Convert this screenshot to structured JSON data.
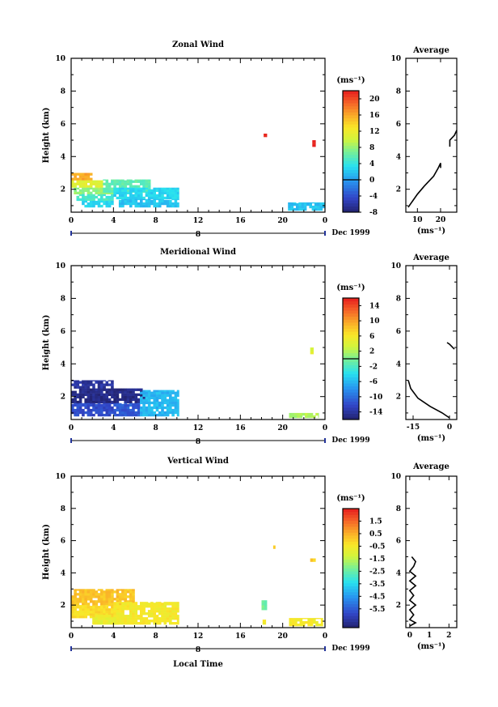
{
  "chart_data": [
    {
      "type": "heatmap",
      "title": "Zonal Wind",
      "ylabel": "Height (km)",
      "xlabel": "",
      "xlim": [
        0,
        24
      ],
      "ylim": [
        0.6,
        10
      ],
      "x_ticks": [
        "0",
        "4",
        "8",
        "12",
        "16",
        "20",
        "0"
      ],
      "y_ticks": [
        "2",
        "4",
        "6",
        "8",
        "10"
      ],
      "date_tick_label": "8",
      "date_label": "Dec 1999",
      "colorbar": {
        "unit": "(ms⁻¹)",
        "range": [
          -8,
          22
        ],
        "ticks": [
          "20",
          "16",
          "12",
          "8",
          "4",
          "0",
          "-4",
          "-8"
        ],
        "tick_values": [
          20,
          16,
          12,
          8,
          4,
          0,
          -4,
          -8
        ],
        "zero_line": 0
      },
      "regions": [
        {
          "x": [
            0.0,
            2.0
          ],
          "y": [
            2.55,
            3.0
          ],
          "value": 16
        },
        {
          "x": [
            0.0,
            3.0
          ],
          "y": [
            2.1,
            2.55
          ],
          "value": 11
        },
        {
          "x": [
            0.0,
            4.0
          ],
          "y": [
            1.7,
            2.1
          ],
          "value": 8
        },
        {
          "x": [
            3.0,
            7.5
          ],
          "y": [
            1.8,
            2.6
          ],
          "value": 6
        },
        {
          "x": [
            0.5,
            4.0
          ],
          "y": [
            1.3,
            1.7
          ],
          "value": 5
        },
        {
          "x": [
            4.0,
            10.2
          ],
          "y": [
            1.4,
            2.1
          ],
          "value": 3
        },
        {
          "x": [
            1.0,
            4.0
          ],
          "y": [
            0.9,
            1.3
          ],
          "value": 3
        },
        {
          "x": [
            4.5,
            10.2
          ],
          "y": [
            0.9,
            1.4
          ],
          "value": 2
        },
        {
          "x": [
            18.2,
            18.5
          ],
          "y": [
            5.2,
            5.4
          ],
          "value": 22
        },
        {
          "x": [
            22.8,
            23.1
          ],
          "y": [
            4.6,
            5.0
          ],
          "value": 22
        },
        {
          "x": [
            20.5,
            24.0
          ],
          "y": [
            0.7,
            1.2
          ],
          "value": 2
        }
      ],
      "average_profile": {
        "title": "Average",
        "xlabel": "(ms⁻¹)",
        "x_ticks": [
          "10",
          "20"
        ],
        "xlim": [
          5,
          27
        ],
        "ylim": [
          0.6,
          10
        ],
        "y_ticks": [
          "2",
          "4",
          "6",
          "8",
          "10"
        ],
        "segments": [
          {
            "x": [
              6,
              8,
              10,
              13,
              17,
              19,
              20,
              20
            ],
            "y": [
              0.9,
              1.3,
              1.7,
              2.2,
              2.8,
              3.3,
              3.6,
              3.3
            ]
          },
          {
            "x": [
              24,
              24,
              26,
              27
            ],
            "y": [
              4.6,
              5.0,
              5.3,
              5.6
            ]
          }
        ]
      }
    },
    {
      "type": "heatmap",
      "title": "Meridional Wind",
      "ylabel": "Height (km)",
      "xlabel": "",
      "xlim": [
        0,
        24
      ],
      "ylim": [
        0.6,
        10
      ],
      "x_ticks": [
        "0",
        "4",
        "8",
        "12",
        "16",
        "20",
        "0"
      ],
      "y_ticks": [
        "2",
        "4",
        "6",
        "8",
        "10"
      ],
      "date_tick_label": "8",
      "date_label": "Dec 1999",
      "colorbar": {
        "unit": "(ms⁻¹)",
        "range": [
          -16,
          16
        ],
        "ticks": [
          "14",
          "10",
          "6",
          "2",
          "-2",
          "-6",
          "-10",
          "-14"
        ],
        "tick_values": [
          14,
          10,
          6,
          2,
          -2,
          -6,
          -10,
          -14
        ],
        "zero_line": 0
      },
      "regions": [
        {
          "x": [
            0.0,
            4.0
          ],
          "y": [
            2.5,
            3.0
          ],
          "value": -14
        },
        {
          "x": [
            0.0,
            7.0
          ],
          "y": [
            1.6,
            2.5
          ],
          "value": -15
        },
        {
          "x": [
            0.0,
            4.0
          ],
          "y": [
            0.8,
            1.6
          ],
          "value": -12
        },
        {
          "x": [
            4.0,
            6.5
          ],
          "y": [
            0.8,
            1.6
          ],
          "value": -11
        },
        {
          "x": [
            6.5,
            10.2
          ],
          "y": [
            0.8,
            2.4
          ],
          "value": -6
        },
        {
          "x": [
            20.6,
            23.4
          ],
          "y": [
            0.7,
            1.0
          ],
          "value": 2
        },
        {
          "x": [
            22.6,
            22.9
          ],
          "y": [
            4.6,
            5.0
          ],
          "value": 4
        }
      ],
      "average_profile": {
        "title": "Average",
        "xlabel": "(ms⁻¹)",
        "x_ticks": [
          "-15",
          "0"
        ],
        "xlim": [
          -18,
          3
        ],
        "ylim": [
          0.6,
          10
        ],
        "y_ticks": [
          "2",
          "4",
          "6",
          "8",
          "10"
        ],
        "segments": [
          {
            "x": [
              -17,
              -16,
              -13,
              -8,
              -3,
              0
            ],
            "y": [
              3.0,
              2.5,
              1.9,
              1.4,
              1.0,
              0.7
            ]
          },
          {
            "x": [
              -1,
              0,
              2
            ],
            "y": [
              5.3,
              5.2,
              4.9
            ]
          }
        ]
      }
    },
    {
      "type": "heatmap",
      "title": "Vertical Wind",
      "ylabel": "Height (km)",
      "xlabel": "Local Time",
      "xlim": [
        0,
        24
      ],
      "ylim": [
        0.6,
        10
      ],
      "x_ticks": [
        "0",
        "4",
        "8",
        "12",
        "16",
        "20",
        "0"
      ],
      "y_ticks": [
        "2",
        "4",
        "6",
        "8",
        "10"
      ],
      "date_tick_label": "8",
      "date_label": "Dec 1999",
      "colorbar": {
        "unit": "(ms⁻¹)",
        "range": [
          -7,
          2.5
        ],
        "ticks": [
          "1.5",
          "0.5",
          "-0.5",
          "-1.5",
          "-2.5",
          "-3.5",
          "-4.5",
          "-5.5"
        ],
        "tick_values": [
          1.5,
          0.5,
          -0.5,
          -1.5,
          -2.5,
          -3.5,
          -4.5,
          -5.5
        ],
        "zero_line": null
      },
      "regions": [
        {
          "x": [
            0.0,
            6.0
          ],
          "y": [
            2.0,
            3.0
          ],
          "value": 0.2
        },
        {
          "x": [
            0.0,
            5.0
          ],
          "y": [
            1.2,
            2.0
          ],
          "value": -0.2
        },
        {
          "x": [
            4.0,
            10.2
          ],
          "y": [
            0.8,
            2.2
          ],
          "value": -0.5
        },
        {
          "x": [
            2.0,
            5.0
          ],
          "y": [
            0.8,
            1.4
          ],
          "value": -0.8
        },
        {
          "x": [
            18.0,
            18.5
          ],
          "y": [
            1.7,
            2.3
          ],
          "value": -2.3
        },
        {
          "x": [
            18.1,
            18.4
          ],
          "y": [
            0.8,
            1.1
          ],
          "value": -0.5
        },
        {
          "x": [
            20.6,
            23.8
          ],
          "y": [
            0.7,
            1.2
          ],
          "value": -0.5
        },
        {
          "x": [
            19.1,
            19.3
          ],
          "y": [
            5.5,
            5.7
          ],
          "value": 0.0
        },
        {
          "x": [
            22.6,
            23.1
          ],
          "y": [
            4.7,
            4.9
          ],
          "value": 0.0
        }
      ],
      "average_profile": {
        "title": "Average",
        "xlabel": "(ms⁻¹)",
        "x_ticks": [
          "0",
          "1",
          "2"
        ],
        "xlim": [
          -0.2,
          2.4
        ],
        "ylim": [
          0.6,
          10
        ],
        "y_ticks": [
          "2",
          "4",
          "6",
          "8",
          "10"
        ],
        "segments": [
          {
            "x": [
              0.1,
              0.3,
              0.2,
              0.0,
              0.3,
              0.0,
              0.3,
              0.0,
              0.2,
              0.0,
              0.3,
              0.0,
              0.2,
              0.0,
              0.3,
              0.0
            ],
            "y": [
              5.0,
              4.7,
              4.4,
              4.1,
              3.8,
              3.5,
              3.2,
              2.9,
              2.6,
              2.3,
              2.0,
              1.7,
              1.4,
              1.1,
              0.9,
              0.7
            ]
          }
        ]
      }
    }
  ]
}
